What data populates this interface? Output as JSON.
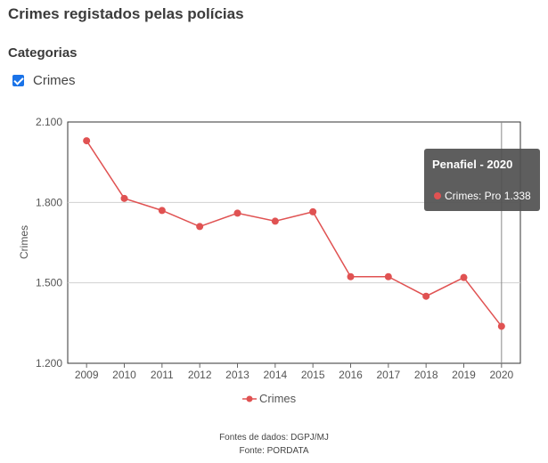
{
  "header": {
    "title": "Crimes registados pelas polícias"
  },
  "filters": {
    "section_title": "Categorias",
    "categories": [
      {
        "label": "Crimes",
        "checked": true
      }
    ]
  },
  "tooltip": {
    "title": "Penafiel - 2020",
    "series_label": "Crimes: Pro",
    "value": "1.338"
  },
  "legend": {
    "label": "Crimes"
  },
  "footer": {
    "sources": "Fontes de dados: DGPJ/MJ",
    "source": "Fonte: PORDATA"
  },
  "colors": {
    "series": "#e05252",
    "tooltip_bg": "#505050",
    "checkbox": "#1a73e8"
  },
  "chart_data": {
    "type": "line",
    "ylabel": "Crimes",
    "xlabel": "",
    "ylim": [
      1200,
      2100
    ],
    "yticks": [
      1200,
      1500,
      1800,
      2100
    ],
    "ytick_labels": [
      "1.200",
      "1.500",
      "1.800",
      "2.100"
    ],
    "categories": [
      "2009",
      "2010",
      "2011",
      "2012",
      "2013",
      "2014",
      "2015",
      "2016",
      "2017",
      "2018",
      "2019",
      "2020"
    ],
    "series": [
      {
        "name": "Crimes",
        "values": [
          2030,
          1815,
          1770,
          1710,
          1760,
          1730,
          1765,
          1523,
          1523,
          1450,
          1520,
          1338
        ]
      }
    ],
    "highlighted_category": "2020",
    "grid": true,
    "legend_position": "bottom"
  }
}
